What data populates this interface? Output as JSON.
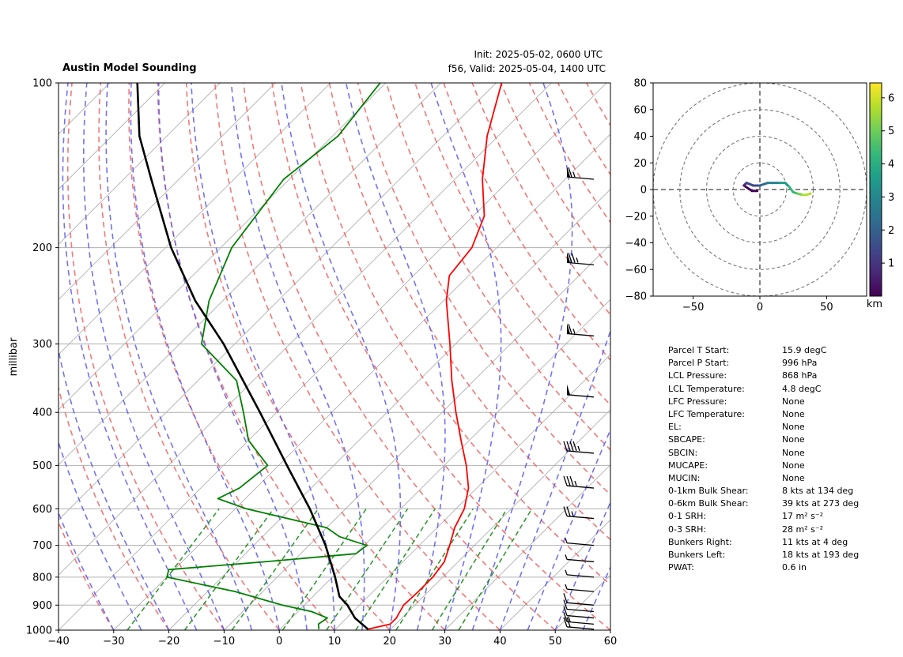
{
  "header": {
    "title": "Austin Model Sounding",
    "init": "Init: 2025-05-02, 0600 UTC",
    "valid": "f56, Valid: 2025-05-04, 1400 UTC"
  },
  "parameters": [
    {
      "name": "Parcel T Start:",
      "value": "15.9 degC"
    },
    {
      "name": "Parcel P Start:",
      "value": "996 hPa"
    },
    {
      "name": "LCL Pressure:",
      "value": "868 hPa"
    },
    {
      "name": "LCL Temperature:",
      "value": "4.8 degC"
    },
    {
      "name": "LFC Pressure:",
      "value": "None"
    },
    {
      "name": "LFC Temperature:",
      "value": "None"
    },
    {
      "name": "EL:",
      "value": "None"
    },
    {
      "name": "SBCAPE:",
      "value": "None"
    },
    {
      "name": "SBCIN:",
      "value": "None"
    },
    {
      "name": "MUCAPE:",
      "value": "None"
    },
    {
      "name": "MUCIN:",
      "value": "None"
    },
    {
      "name": "0-1km Bulk Shear:",
      "value": "8 kts at 134 deg"
    },
    {
      "name": "0-6km Bulk Shear:",
      "value": "39 kts at 273 deg"
    },
    {
      "name": "0-1 SRH:",
      "value": "17 m² s⁻²"
    },
    {
      "name": "0-3 SRH:",
      "value": "28 m² s⁻²"
    },
    {
      "name": "Bunkers Right:",
      "value": "11 kts at 4 deg"
    },
    {
      "name": "Bunkers Left:",
      "value": "18 kts at 193 deg"
    },
    {
      "name": "PWAT:",
      "value": "0.6 in"
    }
  ],
  "chart_data": [
    {
      "type": "line",
      "ylabel": "millibar",
      "xlim": [
        -40,
        60
      ],
      "ylim": [
        1000,
        100
      ],
      "y_log_scale": true,
      "skew": true,
      "x_ticks": [
        "−40",
        "−30",
        "−20",
        "−10",
        "0",
        "10",
        "20",
        "30",
        "40",
        "50",
        "60"
      ],
      "y_ticks": [
        "100",
        "200",
        "300",
        "400",
        "500",
        "600",
        "700",
        "800",
        "900",
        "1000"
      ],
      "grid": true,
      "series": [
        {
          "role": "temperature",
          "color": "#ff0000",
          "points": [
            [
              996,
              15.9
            ],
            [
              975,
              19.0
            ],
            [
              950,
              19.0
            ],
            [
              925,
              18.5
            ],
            [
              900,
              18.0
            ],
            [
              850,
              18.2
            ],
            [
              800,
              18.2
            ],
            [
              750,
              17.5
            ],
            [
              700,
              15.5
            ],
            [
              650,
              13.2
            ],
            [
              600,
              11.5
            ],
            [
              550,
              8.5
            ],
            [
              500,
              4.0
            ],
            [
              450,
              -1.5
            ],
            [
              400,
              -7.5
            ],
            [
              350,
              -14.0
            ],
            [
              300,
              -21.0
            ],
            [
              250,
              -29.5
            ],
            [
              225,
              -33.5
            ],
            [
              200,
              -34.5
            ],
            [
              175,
              -38.0
            ],
            [
              150,
              -45.0
            ],
            [
              125,
              -52.0
            ],
            [
              100,
              -59.0
            ]
          ]
        },
        {
          "role": "dewpoint",
          "color": "#008000",
          "points": [
            [
              996,
              7.0
            ],
            [
              975,
              6.0
            ],
            [
              950,
              6.5
            ],
            [
              925,
              2.5
            ],
            [
              900,
              -4.0
            ],
            [
              850,
              -15.0
            ],
            [
              800,
              -30.0
            ],
            [
              775,
              -31.0
            ],
            [
              750,
              -15.0
            ],
            [
              725,
              0.0
            ],
            [
              700,
              0.5
            ],
            [
              675,
              -6.0
            ],
            [
              650,
              -10.0
            ],
            [
              600,
              -28.0
            ],
            [
              575,
              -35.0
            ],
            [
              550,
              -33.0
            ],
            [
              500,
              -32.0
            ],
            [
              450,
              -40.0
            ],
            [
              400,
              -46.0
            ],
            [
              350,
              -53.0
            ],
            [
              300,
              -66.0
            ],
            [
              250,
              -72.5
            ],
            [
              200,
              -78.0
            ],
            [
              150,
              -81.0
            ],
            [
              125,
              -79.0
            ],
            [
              100,
              -81.0
            ]
          ]
        },
        {
          "role": "parcel",
          "color": "#000000",
          "points": [
            [
              996,
              15.9
            ],
            [
              950,
              11.5
            ],
            [
              900,
              7.8
            ],
            [
              868,
              4.8
            ],
            [
              800,
              0.5
            ],
            [
              700,
              -7.0
            ],
            [
              600,
              -16.5
            ],
            [
              500,
              -28.5
            ],
            [
              400,
              -43.0
            ],
            [
              300,
              -62.0
            ],
            [
              250,
              -75.0
            ],
            [
              200,
              -89.0
            ],
            [
              150,
              -105.0
            ],
            [
              125,
              -115.0
            ],
            [
              100,
              -125.0
            ]
          ]
        }
      ],
      "wind_barbs": [
        {
          "p": 996,
          "speed_kts": 20
        },
        {
          "p": 975,
          "speed_kts": 15
        },
        {
          "p": 950,
          "speed_kts": 10
        },
        {
          "p": 925,
          "speed_kts": 10
        },
        {
          "p": 900,
          "speed_kts": 10
        },
        {
          "p": 850,
          "speed_kts": 5
        },
        {
          "p": 800,
          "speed_kts": 5
        },
        {
          "p": 750,
          "speed_kts": 5
        },
        {
          "p": 700,
          "speed_kts": 5
        },
        {
          "p": 625,
          "speed_kts": 25
        },
        {
          "p": 550,
          "speed_kts": 35
        },
        {
          "p": 475,
          "speed_kts": 45
        },
        {
          "p": 375,
          "speed_kts": 50
        },
        {
          "p": 290,
          "speed_kts": 65
        },
        {
          "p": 215,
          "speed_kts": 75
        },
        {
          "p": 150,
          "speed_kts": 65
        }
      ]
    },
    {
      "type": "line",
      "xlim": [
        -80,
        80
      ],
      "ylim": [
        -80,
        80
      ],
      "x_ticks": [
        "−50",
        "0",
        "50"
      ],
      "y_ticks": [
        "80",
        "60",
        "40",
        "20",
        "0",
        "−20",
        "−40",
        "−60",
        "−80"
      ],
      "colorbar_label": "km",
      "colorbar_ticks": [
        "1",
        "2",
        "3",
        "4",
        "5",
        "6"
      ],
      "rings": [
        20,
        40,
        60,
        80
      ],
      "hodograph": [
        [
          -2,
          -1,
          0.0
        ],
        [
          -6,
          -1,
          0.5
        ],
        [
          -12,
          3,
          1.0
        ],
        [
          -10,
          5,
          1.3
        ],
        [
          -5,
          3,
          1.6
        ],
        [
          0,
          3,
          2.0
        ],
        [
          3,
          4,
          2.3
        ],
        [
          6,
          5,
          2.7
        ],
        [
          10,
          5,
          3.0
        ],
        [
          15,
          5,
          3.4
        ],
        [
          19,
          5,
          3.7
        ],
        [
          22,
          2,
          4.0
        ],
        [
          25,
          -2,
          4.3
        ],
        [
          28,
          -3,
          4.8
        ],
        [
          32,
          -4,
          5.3
        ],
        [
          35,
          -4,
          5.7
        ],
        [
          38,
          -3,
          6.2
        ]
      ]
    }
  ]
}
